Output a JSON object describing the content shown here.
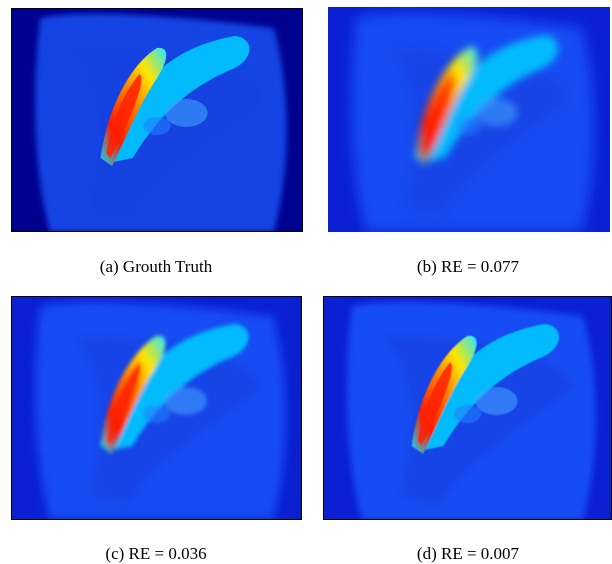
{
  "figure": {
    "panels": [
      {
        "id": "a",
        "caption": "(a)  Grouth Truth",
        "variant": "truth",
        "border": true
      },
      {
        "id": "b",
        "caption": "(b)  RE = 0.077",
        "variant": "blur-heavy",
        "border": false
      },
      {
        "id": "c",
        "caption": "(c)  RE = 0.036",
        "variant": "blur-medium",
        "border": true
      },
      {
        "id": "d",
        "caption": "(d)  RE = 0.007",
        "variant": "near-truth",
        "border": true
      }
    ],
    "colormap": "jet",
    "colors": {
      "background_deep": "#00008f",
      "background_mid": "#0a1fd0",
      "tissue": "#1e5cff",
      "bright_tissue": "#00c8ff",
      "hot_core": "#ff2000"
    }
  }
}
